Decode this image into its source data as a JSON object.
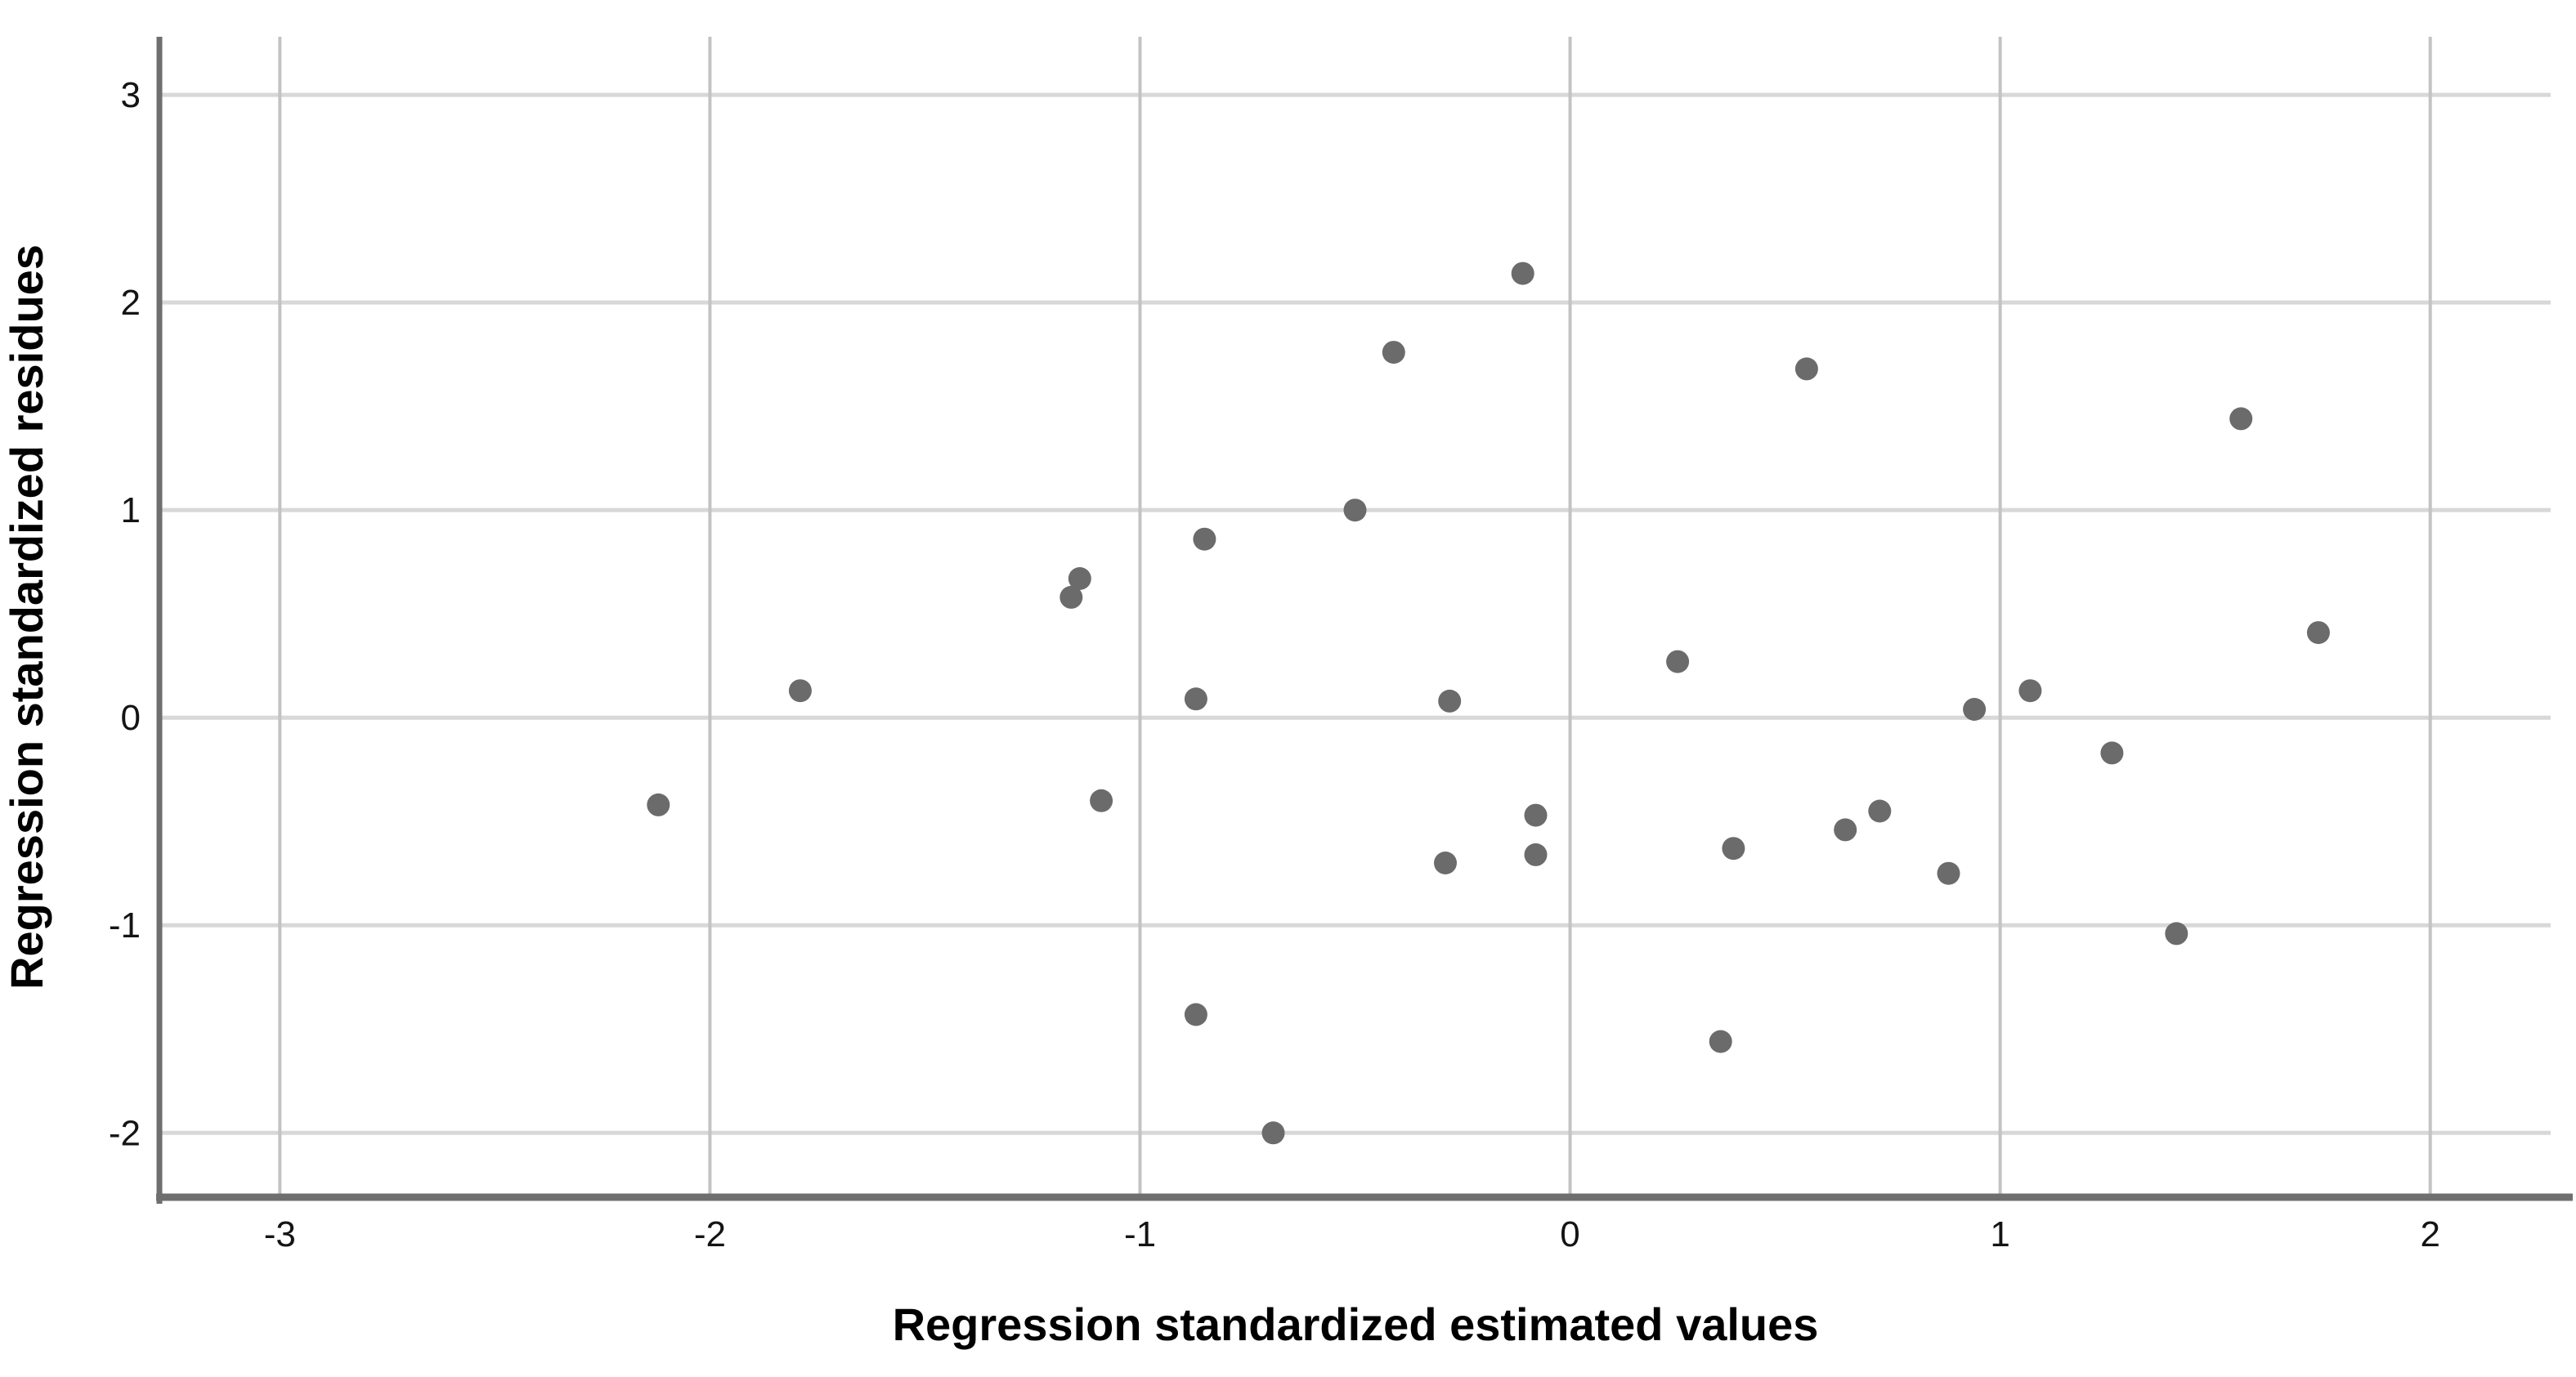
{
  "figure": {
    "background_color": "#ffffff"
  },
  "chart_data": {
    "type": "scatter",
    "title": "",
    "xlabel": "Regression standardized estimated values",
    "ylabel": "Regression standardized residues",
    "xlim": [
      -3.28,
      2.28
    ],
    "ylim": [
      -2.31,
      3.28
    ],
    "grid": true,
    "legend": "none",
    "x_ticks": [
      {
        "value": -3,
        "label": "-3"
      },
      {
        "value": -2,
        "label": "-2"
      },
      {
        "value": -1,
        "label": "-1"
      },
      {
        "value": 0,
        "label": "0"
      },
      {
        "value": 1,
        "label": "1"
      },
      {
        "value": 2,
        "label": "2"
      }
    ],
    "y_ticks": [
      {
        "value": -2,
        "label": "-2"
      },
      {
        "value": -1,
        "label": "-1"
      },
      {
        "value": 0,
        "label": "0"
      },
      {
        "value": 1,
        "label": "1"
      },
      {
        "value": 2,
        "label": "2"
      },
      {
        "value": 3,
        "label": "3"
      }
    ],
    "points": [
      {
        "x": -0.11,
        "y": 2.14
      },
      {
        "x": -0.41,
        "y": 1.76
      },
      {
        "x": 0.55,
        "y": 1.68
      },
      {
        "x": 1.56,
        "y": 1.44
      },
      {
        "x": -0.5,
        "y": 1.0
      },
      {
        "x": -0.85,
        "y": 0.86
      },
      {
        "x": -1.14,
        "y": 0.67
      },
      {
        "x": -1.16,
        "y": 0.58
      },
      {
        "x": 1.74,
        "y": 0.41
      },
      {
        "x": -1.79,
        "y": 0.13
      },
      {
        "x": 0.25,
        "y": 0.27
      },
      {
        "x": -0.87,
        "y": 0.09
      },
      {
        "x": -0.28,
        "y": 0.08
      },
      {
        "x": 1.07,
        "y": 0.13
      },
      {
        "x": 0.94,
        "y": 0.04
      },
      {
        "x": 1.26,
        "y": -0.17
      },
      {
        "x": -2.12,
        "y": -0.42
      },
      {
        "x": -1.09,
        "y": -0.4
      },
      {
        "x": -0.08,
        "y": -0.47
      },
      {
        "x": 0.72,
        "y": -0.45
      },
      {
        "x": 0.64,
        "y": -0.54
      },
      {
        "x": 0.38,
        "y": -0.63
      },
      {
        "x": -0.08,
        "y": -0.66
      },
      {
        "x": -0.29,
        "y": -0.7
      },
      {
        "x": 0.88,
        "y": -0.75
      },
      {
        "x": 1.41,
        "y": -1.04
      },
      {
        "x": -0.87,
        "y": -1.43
      },
      {
        "x": 0.35,
        "y": -1.56
      },
      {
        "x": -0.69,
        "y": -2.0
      }
    ],
    "marker": {
      "shape": "circle",
      "radius_px": 14,
      "color": "#6b6b6b"
    },
    "style": {
      "h_gridline_color": "#d8d8d8",
      "v_gridline_color": "#c3c3c3",
      "axis_line_color": "#6f6f6f",
      "tick_label_color": "#141414",
      "title_color": "#000000"
    }
  }
}
